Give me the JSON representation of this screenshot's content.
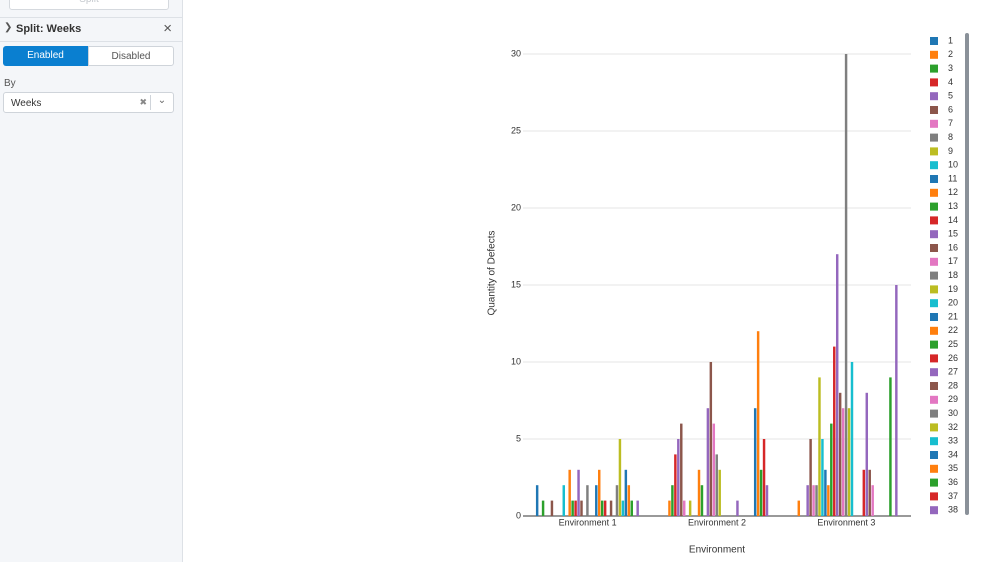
{
  "sidebar": {
    "top_button": "Split",
    "section_title": "Split: Weeks",
    "enabled": "Enabled",
    "disabled": "Disabled",
    "by_label": "By",
    "by_value": "Weeks"
  },
  "chart_data": {
    "type": "bar",
    "y_label": "Quantity of Defects",
    "x_label": "Environment",
    "categories": [
      "Environment 1",
      "Environment 2",
      "Environment 3"
    ],
    "ylim": [
      0,
      30
    ],
    "yticks": [
      0,
      5,
      10,
      15,
      20,
      25,
      30
    ],
    "grid": true,
    "legend": "right",
    "series": [
      {
        "name": "1",
        "color": "#1f77b4",
        "values": [
          2,
          0,
          0
        ]
      },
      {
        "name": "2",
        "color": "#ff7f0e",
        "values": [
          0,
          1,
          1
        ]
      },
      {
        "name": "3",
        "color": "#2ca02c",
        "values": [
          1,
          2,
          0
        ]
      },
      {
        "name": "4",
        "color": "#d62728",
        "values": [
          0,
          4,
          0
        ]
      },
      {
        "name": "5",
        "color": "#9467bd",
        "values": [
          0,
          5,
          2
        ]
      },
      {
        "name": "6",
        "color": "#8c564b",
        "values": [
          1,
          6,
          5
        ]
      },
      {
        "name": "7",
        "color": "#e377c2",
        "values": [
          0,
          1,
          2
        ]
      },
      {
        "name": "8",
        "color": "#7f7f7f",
        "values": [
          0,
          0,
          2
        ]
      },
      {
        "name": "9",
        "color": "#bcbd22",
        "values": [
          0,
          1,
          9
        ]
      },
      {
        "name": "10",
        "color": "#17becf",
        "values": [
          2,
          0,
          5
        ]
      },
      {
        "name": "11",
        "color": "#1f77b4",
        "values": [
          0,
          0,
          3
        ]
      },
      {
        "name": "12",
        "color": "#ff7f0e",
        "values": [
          3,
          3,
          2
        ]
      },
      {
        "name": "13",
        "color": "#2ca02c",
        "values": [
          1,
          2,
          6
        ]
      },
      {
        "name": "14",
        "color": "#d62728",
        "values": [
          1,
          0,
          11
        ]
      },
      {
        "name": "15",
        "color": "#9467bd",
        "values": [
          3,
          7,
          17
        ]
      },
      {
        "name": "16",
        "color": "#8c564b",
        "values": [
          1,
          10,
          8
        ]
      },
      {
        "name": "17",
        "color": "#e377c2",
        "values": [
          0,
          6,
          7
        ]
      },
      {
        "name": "18",
        "color": "#7f7f7f",
        "values": [
          2,
          4,
          30
        ]
      },
      {
        "name": "19",
        "color": "#bcbd22",
        "values": [
          0,
          3,
          7
        ]
      },
      {
        "name": "20",
        "color": "#17becf",
        "values": [
          0,
          0,
          10
        ]
      },
      {
        "name": "21",
        "color": "#1f77b4",
        "values": [
          2,
          0,
          0
        ]
      },
      {
        "name": "22",
        "color": "#ff7f0e",
        "values": [
          3,
          0,
          0
        ]
      },
      {
        "name": "25",
        "color": "#2ca02c",
        "values": [
          1,
          0,
          0
        ]
      },
      {
        "name": "26",
        "color": "#d62728",
        "values": [
          1,
          0,
          3
        ]
      },
      {
        "name": "27",
        "color": "#9467bd",
        "values": [
          0,
          1,
          8
        ]
      },
      {
        "name": "28",
        "color": "#8c564b",
        "values": [
          1,
          0,
          3
        ]
      },
      {
        "name": "29",
        "color": "#e377c2",
        "values": [
          0,
          0,
          2
        ]
      },
      {
        "name": "30",
        "color": "#7f7f7f",
        "values": [
          2,
          0,
          0
        ]
      },
      {
        "name": "32",
        "color": "#bcbd22",
        "values": [
          5,
          0,
          0
        ]
      },
      {
        "name": "33",
        "color": "#17becf",
        "values": [
          1,
          0,
          0
        ]
      },
      {
        "name": "34",
        "color": "#1f77b4",
        "values": [
          3,
          7,
          0
        ]
      },
      {
        "name": "35",
        "color": "#ff7f0e",
        "values": [
          2,
          12,
          0
        ]
      },
      {
        "name": "36",
        "color": "#2ca02c",
        "values": [
          1,
          3,
          9
        ]
      },
      {
        "name": "37",
        "color": "#d62728",
        "values": [
          0,
          5,
          0
        ]
      },
      {
        "name": "38",
        "color": "#9467bd",
        "values": [
          1,
          2,
          15
        ]
      }
    ]
  }
}
